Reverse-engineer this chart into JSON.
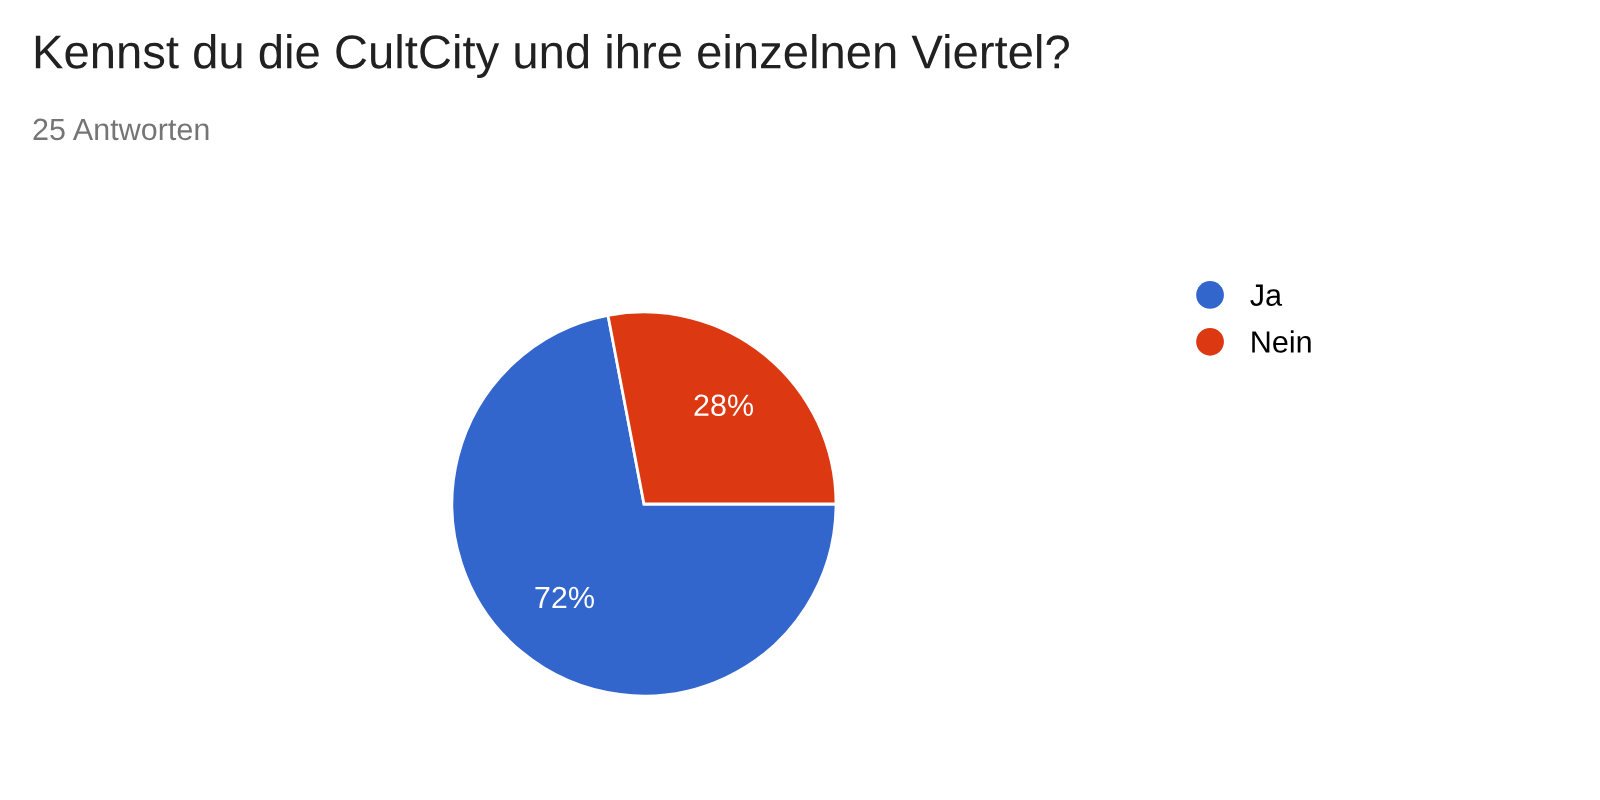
{
  "chart_data": {
    "type": "pie",
    "title": "Kennst du die CultCity und ihre einzelnen Viertel?",
    "subtitle": "25 Antworten",
    "categories": [
      "Ja",
      "Nein"
    ],
    "values": [
      72,
      28
    ],
    "colors": [
      "#3366cc",
      "#dc3912"
    ],
    "value_labels": [
      "72%",
      "28%"
    ],
    "legend": "top right"
  }
}
